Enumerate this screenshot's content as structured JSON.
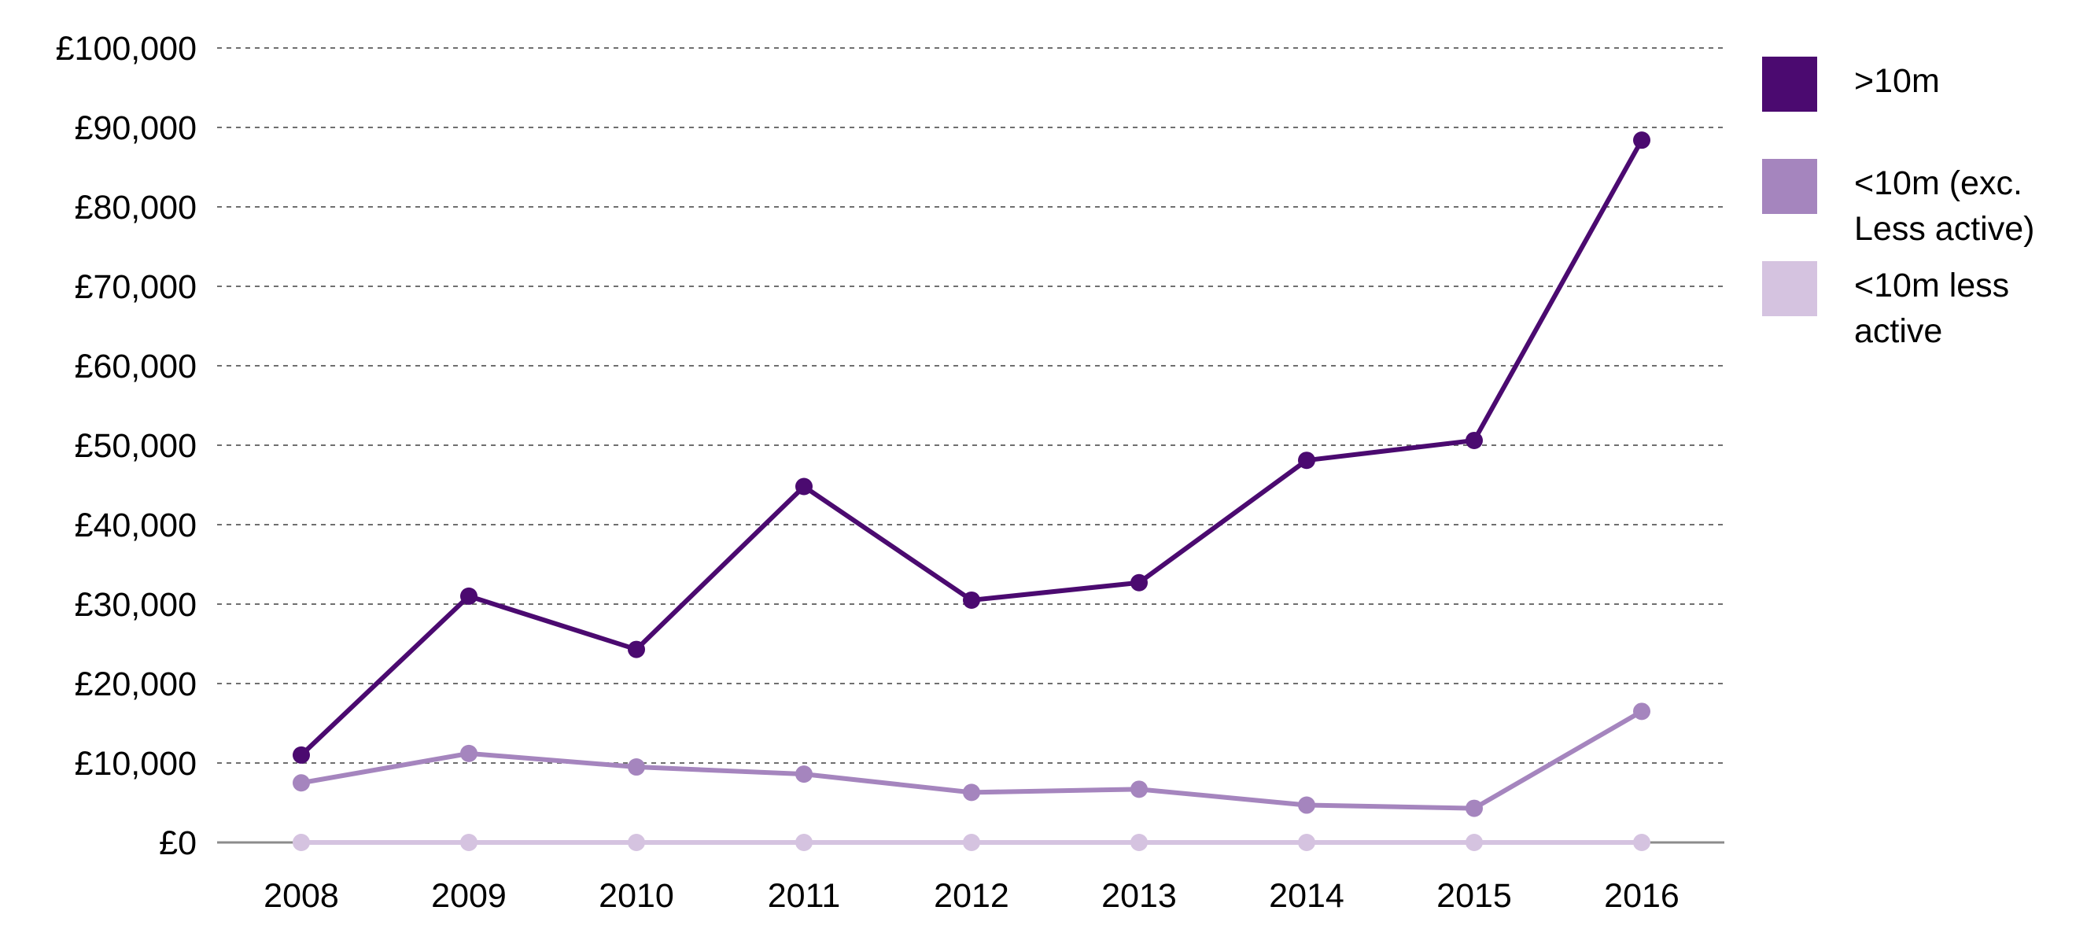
{
  "chart_data": {
    "type": "line",
    "title": "",
    "xlabel": "",
    "ylabel": "",
    "x": [
      "2008",
      "2009",
      "2010",
      "2011",
      "2012",
      "2013",
      "2014",
      "2015",
      "2016"
    ],
    "y_ticks": [
      "£0",
      "£10,000",
      "£20,000",
      "£30,000",
      "£40,000",
      "£50,000",
      "£60,000",
      "£70,000",
      "£80,000",
      "£90,000",
      "£100,000"
    ],
    "ylim": [
      0,
      100000
    ],
    "grid": "horizontal dashed",
    "legend_position": "right",
    "series": [
      {
        "name": ">10m",
        "color": "#4b0a70",
        "values": [
          11000,
          31000,
          24300,
          44800,
          30500,
          32700,
          48100,
          50600,
          88400
        ]
      },
      {
        "name": "<10m (exc. Less active)",
        "color": "#a585be",
        "values": [
          7500,
          11200,
          9500,
          8600,
          6300,
          6700,
          4700,
          4300,
          16500
        ]
      },
      {
        "name": "<10m less active",
        "color": "#d5c3e0",
        "values": [
          0,
          0,
          0,
          0,
          0,
          0,
          0,
          0,
          0
        ]
      }
    ]
  }
}
